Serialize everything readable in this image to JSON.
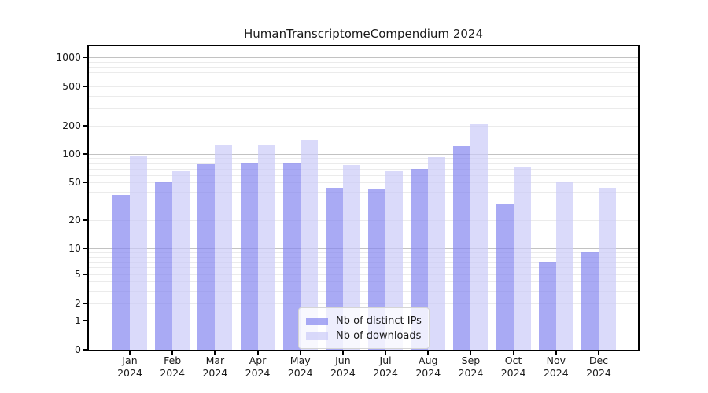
{
  "title": "HumanTranscriptomeCompendium 2024",
  "chart_data": {
    "type": "bar",
    "categories": [
      "Jan 2024",
      "Feb 2024",
      "Mar 2024",
      "Apr 2024",
      "May 2024",
      "Jun 2024",
      "Jul 2024",
      "Aug 2024",
      "Sep 2024",
      "Oct 2024",
      "Nov 2024",
      "Dec 2024"
    ],
    "series": [
      {
        "name": "Nb of distinct IPs",
        "color": "rgba(133,134,240,0.7)",
        "values": [
          37,
          50,
          78,
          81,
          81,
          44,
          42,
          70,
          121,
          30,
          7,
          9
        ]
      },
      {
        "name": "Nb of downloads",
        "color": "rgba(202,202,248,0.7)",
        "values": [
          94,
          65,
          124,
          124,
          141,
          76,
          65,
          93,
          207,
          74,
          51,
          44
        ]
      }
    ],
    "title": "HumanTranscriptomeCompendium 2024",
    "xlabel": "",
    "ylabel": "",
    "yscale": "symlog",
    "ylim": [
      0,
      1300
    ],
    "ytick_values": [
      0,
      1,
      2,
      5,
      10,
      20,
      50,
      100,
      200,
      500,
      1000
    ],
    "major_grid_values": [
      1,
      10,
      100,
      1000
    ],
    "minor_grid_values": [
      2,
      3,
      4,
      5,
      6,
      7,
      8,
      9,
      20,
      30,
      40,
      50,
      60,
      70,
      80,
      90,
      200,
      300,
      400,
      500,
      600,
      700,
      800,
      900
    ],
    "grid": true,
    "legend_position": "lower center",
    "legend": [
      "Nb of distinct IPs",
      "Nb of downloads"
    ]
  },
  "colors": {
    "ip_bar": "rgba(133,134,240,0.7)",
    "downloads_bar": "rgba(202,202,248,0.7)",
    "major_grid": "#c2c2c2",
    "minor_grid": "#ebebeb",
    "spine": "#000000",
    "text": "#1a1a1a"
  }
}
